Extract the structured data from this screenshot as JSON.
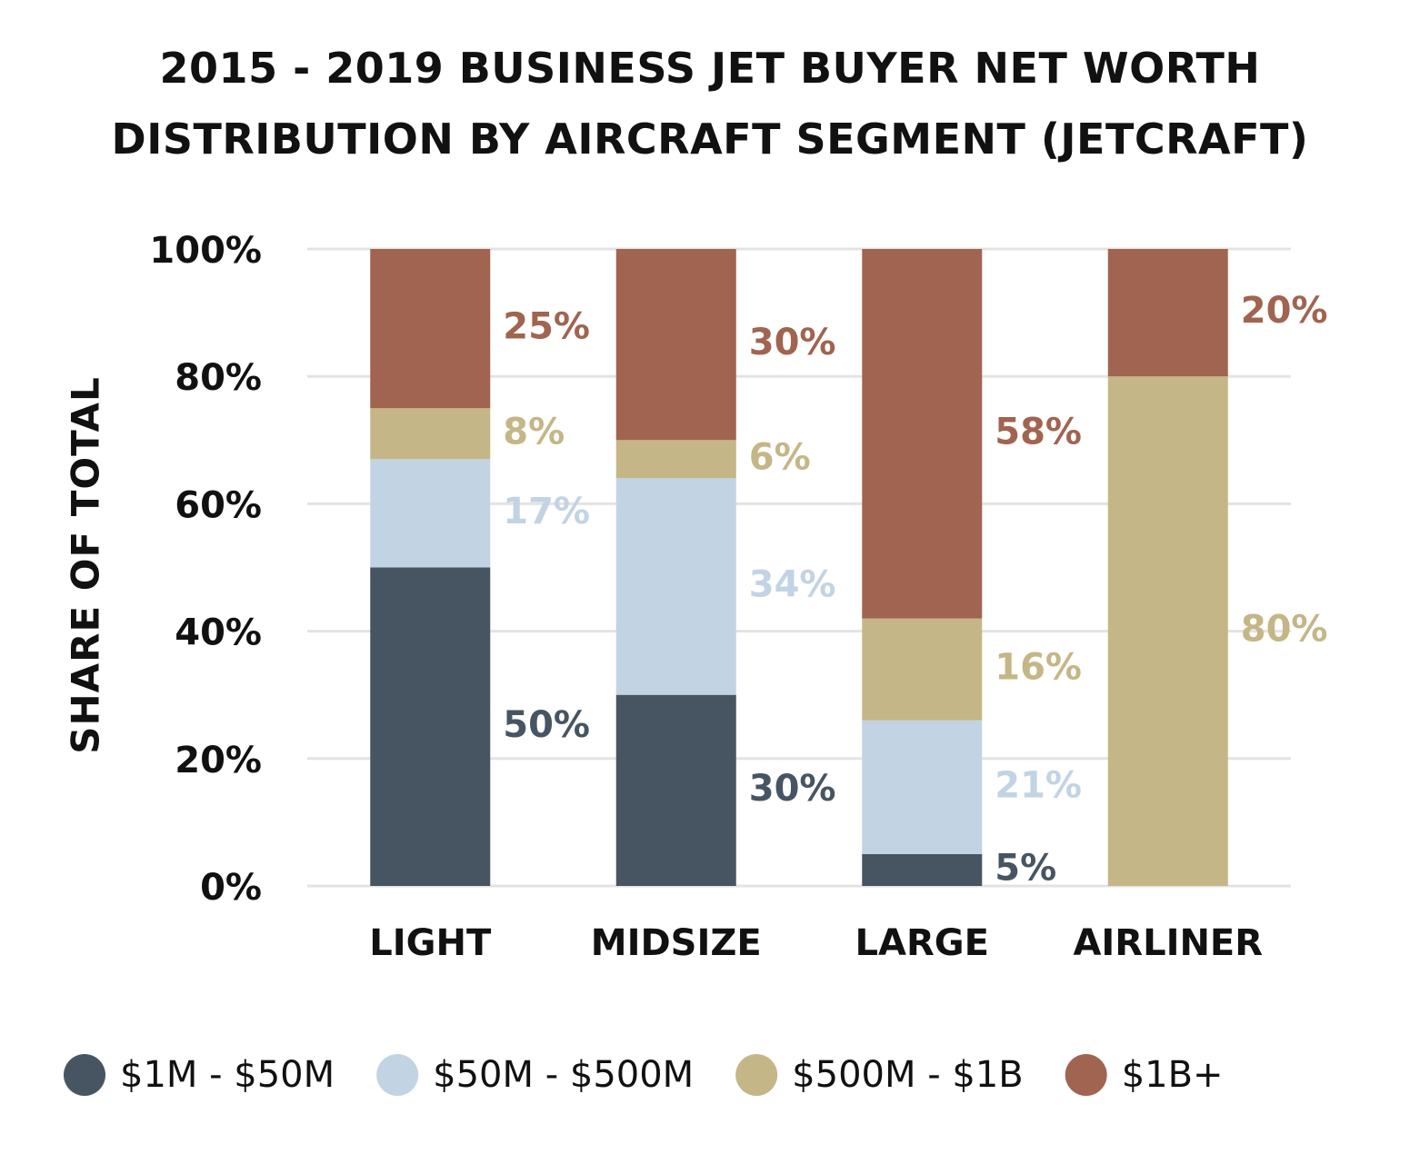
{
  "chart_data": {
    "type": "stacked-bar",
    "title": "2015 - 2019 BUSINESS JET BUYER NET WORTH DISTRIBUTION BY AIRCRAFT SEGMENT (JETCRAFT)",
    "ylabel": "SHARE OF TOTAL",
    "categories": [
      "LIGHT",
      "MIDSIZE",
      "LARGE",
      "AIRLINER"
    ],
    "series": [
      {
        "name": "$1M - $50M",
        "color": "#475563",
        "values": [
          50,
          30,
          5,
          0
        ],
        "value_labels": [
          "50%",
          "30%",
          "5%",
          null
        ]
      },
      {
        "name": "$50M - $500M",
        "color": "#c2d3e4",
        "values": [
          17,
          34,
          21,
          0
        ],
        "value_labels": [
          "17%",
          "34%",
          "21%",
          null
        ]
      },
      {
        "name": "$500M - $1B",
        "color": "#c5b687",
        "values": [
          8,
          6,
          16,
          80
        ],
        "value_labels": [
          "8%",
          "6%",
          "16%",
          "80%"
        ]
      },
      {
        "name": "$1B+",
        "color": "#a06450",
        "values": [
          25,
          30,
          58,
          20
        ],
        "value_labels": [
          "25%",
          "30%",
          "58%",
          "20%"
        ]
      }
    ],
    "ylim": [
      0,
      100
    ],
    "yticks": [
      {
        "value": 0,
        "label": "0%"
      },
      {
        "value": 20,
        "label": "20%"
      },
      {
        "value": 40,
        "label": "40%"
      },
      {
        "value": 60,
        "label": "60%"
      },
      {
        "value": 80,
        "label": "80%"
      },
      {
        "value": 100,
        "label": "100%"
      }
    ],
    "grid": true,
    "legend": "bottom"
  }
}
